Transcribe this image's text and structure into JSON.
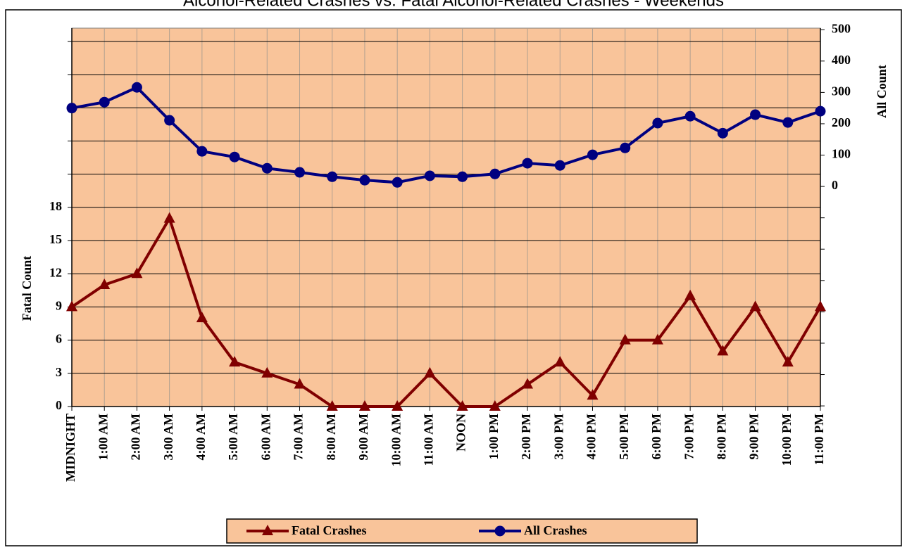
{
  "chart_data": {
    "type": "line",
    "title": "Alcohol-Related Crashes vs. Fatal Alcohol-Related Crashes - Weekends",
    "categories": [
      "MIDNIGHT",
      "1:00 AM",
      "2:00 AM",
      "3:00 AM",
      "4:00 AM",
      "5:00 AM",
      "6:00 AM",
      "7:00 AM",
      "8:00 AM",
      "9:00 AM",
      "10:00 AM",
      "11:00 AM",
      "NOON",
      "1:00 PM",
      "2:00 PM",
      "3:00 PM",
      "4:00 PM",
      "5:00 PM",
      "6:00 PM",
      "7:00 PM",
      "8:00 PM",
      "9:00 PM",
      "10:00 PM",
      "11:00 PM"
    ],
    "series": [
      {
        "name": "Fatal Crashes",
        "color": "#800000",
        "marker": "triangle",
        "values": [
          9,
          11,
          12,
          17,
          8,
          4,
          3,
          2,
          0,
          0,
          0,
          3,
          0,
          0,
          2,
          4,
          1,
          6,
          6,
          10,
          5,
          9,
          4,
          9
        ]
      },
      {
        "name": "All Crashes",
        "color": "#000080",
        "marker": "circle",
        "axis": "y2",
        "values": [
          250,
          269,
          316,
          211,
          112,
          94,
          58,
          45,
          31,
          20,
          13,
          34,
          31,
          40,
          74,
          67,
          101,
          123,
          202,
          224,
          170,
          229,
          204,
          240
        ]
      }
    ],
    "ylabel": "Fatal Count",
    "y2label": "All Count",
    "ylim": [
      0,
      34.2
    ],
    "yticks": [
      0,
      3,
      6,
      9,
      12,
      15,
      18
    ],
    "y2lim": [
      -702,
      505
    ],
    "y2ticks": [
      0,
      100,
      200,
      300,
      400,
      500
    ],
    "grid": true,
    "plot_color": "#F9C49A",
    "legend": "bottom"
  }
}
